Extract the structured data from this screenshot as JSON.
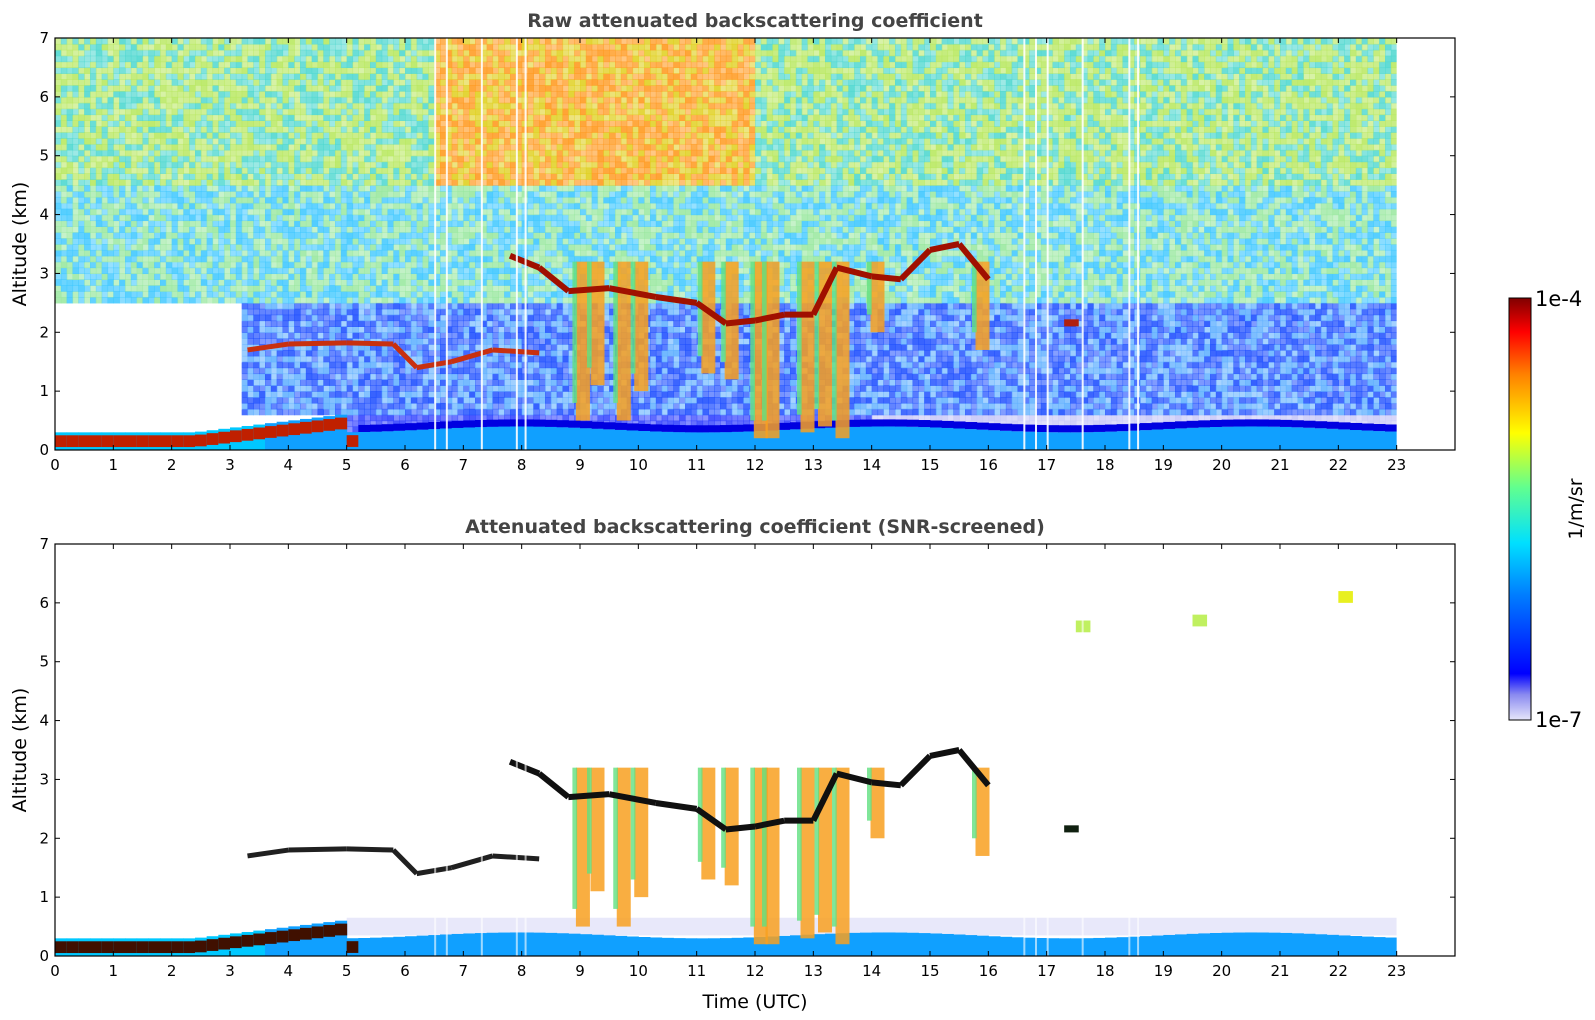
{
  "chart_data": [
    {
      "type": "heatmap",
      "title": "Raw attenuated backscattering coefficient",
      "xlabel": "",
      "ylabel": "Altitude (km)",
      "xlim": [
        0,
        24
      ],
      "ylim": [
        0,
        7
      ],
      "xticks": [
        "0",
        "1",
        "2",
        "3",
        "4",
        "5",
        "6",
        "7",
        "8",
        "9",
        "10",
        "11",
        "12",
        "13",
        "14",
        "15",
        "16",
        "17",
        "18",
        "19",
        "20",
        "21",
        "22",
        "23"
      ],
      "yticks": [
        "0",
        "1",
        "2",
        "3",
        "4",
        "5",
        "6",
        "7"
      ],
      "data_time_range": [
        0,
        23
      ],
      "features": [
        {
          "name": "boundary layer aerosol",
          "time": [
            0,
            23
          ],
          "altitude": [
            0,
            0.4
          ]
        },
        {
          "name": "residual layer",
          "time": [
            3.3,
            8.3
          ],
          "altitude": [
            1.3,
            1.9
          ]
        },
        {
          "name": "cloud layer",
          "time": [
            7.8,
            16.0
          ],
          "altitude": [
            2.0,
            3.6
          ]
        },
        {
          "name": "isolated cloud",
          "time": [
            17.3,
            17.5
          ],
          "altitude": [
            2.1,
            2.2
          ]
        }
      ]
    },
    {
      "type": "heatmap",
      "title": "Attenuated backscattering coefficient (SNR-screened)",
      "xlabel": "Time (UTC)",
      "ylabel": "Altitude (km)",
      "xlim": [
        0,
        24
      ],
      "ylim": [
        0,
        7
      ],
      "xticks": [
        "0",
        "1",
        "2",
        "3",
        "4",
        "5",
        "6",
        "7",
        "8",
        "9",
        "10",
        "11",
        "12",
        "13",
        "14",
        "15",
        "16",
        "17",
        "18",
        "19",
        "20",
        "21",
        "22",
        "23"
      ],
      "yticks": [
        "0",
        "1",
        "2",
        "3",
        "4",
        "5",
        "6",
        "7"
      ],
      "data_time_range": [
        0,
        23
      ]
    }
  ],
  "colorbar": {
    "label": "1/m/sr",
    "max_label": "1e-4",
    "min_label": "1e-7",
    "colormap": "jet",
    "low_color": "#e6e6fa"
  }
}
